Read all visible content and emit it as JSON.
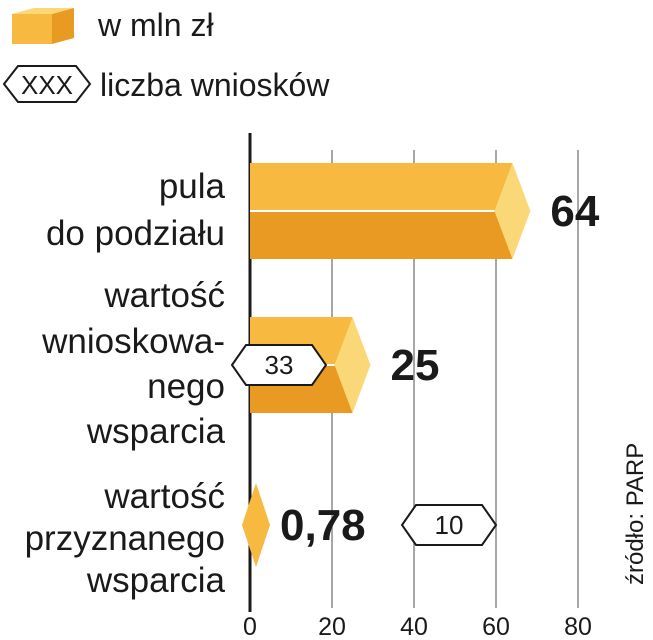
{
  "legend": {
    "value_label": "w mln zł",
    "count_symbol": "XXX",
    "count_label": "liczba wniosków"
  },
  "source": "źródło: PARP",
  "colors": {
    "bar_top": "#f7b940",
    "bar_bottom": "#e89a22",
    "bar_end": "#fbd877",
    "axis": "#1a1a1a",
    "grid": "#8a8a8a"
  },
  "chart_data": {
    "type": "bar",
    "orientation": "horizontal",
    "categories": [
      [
        "pula",
        "do podziału"
      ],
      [
        "wartość",
        "wnioskowa-",
        "nego",
        "wsparcia"
      ],
      [
        "wartość",
        "przyznanego",
        "wsparcia"
      ]
    ],
    "values": [
      64,
      25,
      0.78
    ],
    "value_labels": [
      "64",
      "25",
      "0,78"
    ],
    "counts": [
      null,
      33,
      10
    ],
    "count_labels": [
      "",
      "33",
      "10"
    ],
    "xlim": [
      0,
      80
    ],
    "xticks": [
      0,
      20,
      40,
      60,
      80
    ],
    "grid": true,
    "unit": "w mln zł"
  }
}
